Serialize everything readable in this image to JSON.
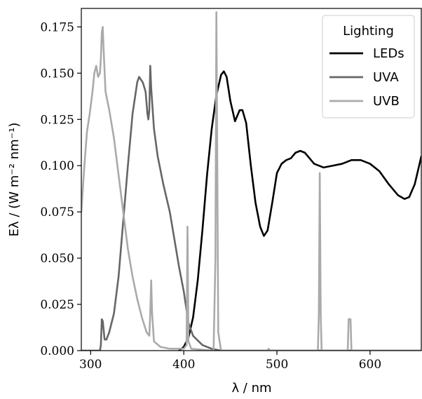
{
  "chart_data": {
    "type": "line",
    "xlabel": "λ / nm",
    "ylabel": "Eλ / (W m⁻² nm⁻¹)",
    "xlim": [
      290,
      655
    ],
    "ylim": [
      0,
      0.185
    ],
    "xticks": [
      300,
      400,
      500,
      600
    ],
    "xtick_labels": [
      "300",
      "400",
      "500",
      "600"
    ],
    "yticks": [
      0,
      0.025,
      0.05,
      0.075,
      0.1,
      0.125,
      0.15,
      0.175
    ],
    "ytick_labels": [
      "0.000",
      "0.025",
      "0.050",
      "0.075",
      "0.100",
      "0.125",
      "0.150",
      "0.175"
    ],
    "grid": false,
    "legend": {
      "title": "Lighting",
      "position": "top-right"
    },
    "series": [
      {
        "name": "LEDs",
        "color": "#000000",
        "points": [
          [
            395,
            0.0
          ],
          [
            400,
            0.002
          ],
          [
            405,
            0.007
          ],
          [
            410,
            0.018
          ],
          [
            415,
            0.038
          ],
          [
            420,
            0.065
          ],
          [
            425,
            0.095
          ],
          [
            430,
            0.12
          ],
          [
            435,
            0.138
          ],
          [
            440,
            0.149
          ],
          [
            443,
            0.151
          ],
          [
            446,
            0.148
          ],
          [
            450,
            0.135
          ],
          [
            455,
            0.124
          ],
          [
            460,
            0.13
          ],
          [
            463,
            0.13
          ],
          [
            467,
            0.123
          ],
          [
            472,
            0.1
          ],
          [
            477,
            0.08
          ],
          [
            482,
            0.067
          ],
          [
            486,
            0.062
          ],
          [
            490,
            0.065
          ],
          [
            495,
            0.08
          ],
          [
            500,
            0.096
          ],
          [
            505,
            0.101
          ],
          [
            510,
            0.103
          ],
          [
            515,
            0.104
          ],
          [
            520,
            0.107
          ],
          [
            525,
            0.108
          ],
          [
            530,
            0.107
          ],
          [
            535,
            0.104
          ],
          [
            540,
            0.101
          ],
          [
            545,
            0.1
          ],
          [
            550,
            0.099
          ],
          [
            560,
            0.1
          ],
          [
            570,
            0.101
          ],
          [
            580,
            0.103
          ],
          [
            590,
            0.103
          ],
          [
            600,
            0.101
          ],
          [
            610,
            0.097
          ],
          [
            620,
            0.09
          ],
          [
            630,
            0.084
          ],
          [
            637,
            0.082
          ],
          [
            642,
            0.083
          ],
          [
            648,
            0.09
          ],
          [
            655,
            0.105
          ]
        ]
      },
      {
        "name": "UVA",
        "color": "#666666",
        "points": [
          [
            290,
            0.0
          ],
          [
            310,
            0.0
          ],
          [
            311,
            0.003
          ],
          [
            312,
            0.017
          ],
          [
            313,
            0.016
          ],
          [
            315,
            0.006
          ],
          [
            317,
            0.006
          ],
          [
            320,
            0.01
          ],
          [
            325,
            0.02
          ],
          [
            330,
            0.04
          ],
          [
            335,
            0.07
          ],
          [
            340,
            0.1
          ],
          [
            345,
            0.128
          ],
          [
            350,
            0.145
          ],
          [
            352,
            0.148
          ],
          [
            356,
            0.145
          ],
          [
            359,
            0.14
          ],
          [
            361,
            0.128
          ],
          [
            362,
            0.125
          ],
          [
            363,
            0.13
          ],
          [
            364,
            0.154
          ],
          [
            365,
            0.142
          ],
          [
            368,
            0.12
          ],
          [
            372,
            0.105
          ],
          [
            378,
            0.09
          ],
          [
            385,
            0.075
          ],
          [
            390,
            0.06
          ],
          [
            395,
            0.045
          ],
          [
            400,
            0.032
          ],
          [
            405,
            0.015
          ],
          [
            410,
            0.008
          ],
          [
            420,
            0.003
          ],
          [
            430,
            0.001
          ],
          [
            440,
            0.0
          ],
          [
            655,
            0.0
          ]
        ]
      },
      {
        "name": "UVB",
        "color": "#aaaaaa",
        "points": [
          [
            290,
            0.075
          ],
          [
            293,
            0.098
          ],
          [
            296,
            0.118
          ],
          [
            299,
            0.128
          ],
          [
            302,
            0.14
          ],
          [
            304,
            0.15
          ],
          [
            306,
            0.154
          ],
          [
            308,
            0.148
          ],
          [
            310,
            0.15
          ],
          [
            311,
            0.158
          ],
          [
            312,
            0.172
          ],
          [
            313,
            0.175
          ],
          [
            314,
            0.162
          ],
          [
            316,
            0.14
          ],
          [
            320,
            0.13
          ],
          [
            325,
            0.115
          ],
          [
            330,
            0.095
          ],
          [
            335,
            0.075
          ],
          [
            340,
            0.055
          ],
          [
            345,
            0.04
          ],
          [
            350,
            0.028
          ],
          [
            355,
            0.018
          ],
          [
            360,
            0.01
          ],
          [
            363,
            0.008
          ],
          [
            364,
            0.02
          ],
          [
            365,
            0.038
          ],
          [
            366,
            0.02
          ],
          [
            368,
            0.005
          ],
          [
            375,
            0.002
          ],
          [
            385,
            0.001
          ],
          [
            400,
            0.001
          ],
          [
            403,
            0.003
          ],
          [
            404,
            0.067
          ],
          [
            405,
            0.005
          ],
          [
            408,
            0.001
          ],
          [
            432,
            0.0
          ],
          [
            434,
            0.05
          ],
          [
            435,
            0.183
          ],
          [
            436,
            0.1
          ],
          [
            437,
            0.01
          ],
          [
            440,
            0.0
          ],
          [
            490,
            0.0
          ],
          [
            491,
            0.001
          ],
          [
            493,
            0.0
          ],
          [
            544,
            0.0
          ],
          [
            545,
            0.02
          ],
          [
            546,
            0.096
          ],
          [
            547,
            0.02
          ],
          [
            548,
            0.0
          ],
          [
            576,
            0.0
          ],
          [
            577,
            0.017
          ],
          [
            579,
            0.017
          ],
          [
            580,
            0.0
          ],
          [
            655,
            0.0
          ]
        ]
      }
    ]
  }
}
